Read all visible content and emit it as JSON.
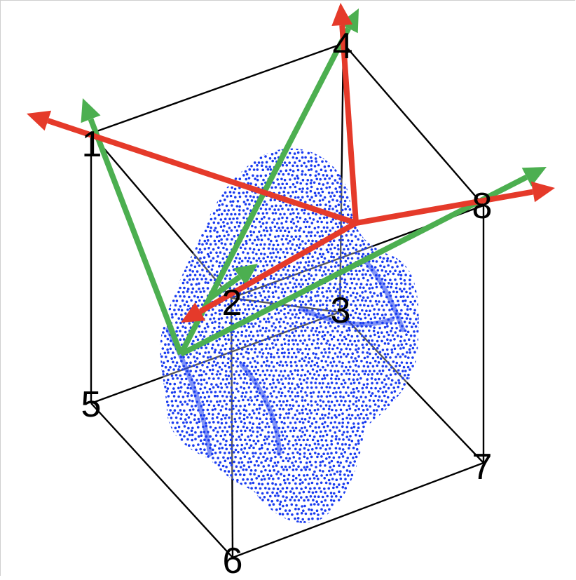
{
  "figure": {
    "vertex_labels": [
      "1",
      "2",
      "3",
      "4",
      "5",
      "6",
      "7",
      "8"
    ],
    "colors": {
      "cube_edges": "#000000",
      "point_cloud": "#1a3cf0",
      "red_vectors": "#e53a2a",
      "green_vectors": "#4caf50"
    },
    "point_cloud_icon": "dotted-blob",
    "arrow_icon": "arrowhead"
  }
}
